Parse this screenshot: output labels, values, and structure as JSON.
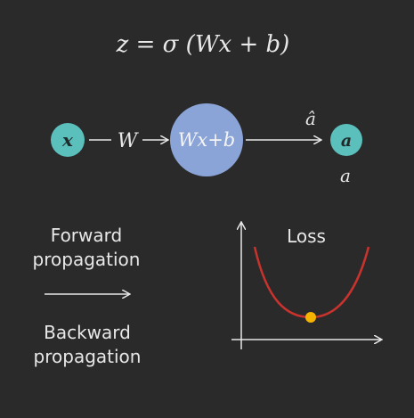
{
  "equation": "z = σ (Wx + b)",
  "network": {
    "input_node": "x",
    "weight_label": "W",
    "neuron_label": "Wx+b",
    "prediction_label": "â",
    "output_node": "a",
    "target_label": "a"
  },
  "legend": {
    "forward_line1": "Forward",
    "forward_line2": "propagation",
    "backward_line1": "Backward",
    "backward_line2": "propagation"
  },
  "loss_plot": {
    "title": "Loss"
  },
  "colors": {
    "background": "#2a2a2a",
    "text": "#e8e8e8",
    "node_teal": "#5bbfbb",
    "neuron_blue": "#8aa4d8",
    "loss_curve": "#c8332e",
    "minimum_point": "#f5b400"
  }
}
